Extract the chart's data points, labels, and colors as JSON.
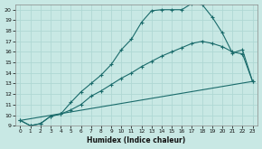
{
  "xlabel": "Humidex (Indice chaleur)",
  "xlim": [
    -0.5,
    23.5
  ],
  "ylim": [
    9,
    20.5
  ],
  "yticks": [
    9,
    10,
    11,
    12,
    13,
    14,
    15,
    16,
    17,
    18,
    19,
    20
  ],
  "xticks": [
    0,
    1,
    2,
    3,
    4,
    5,
    6,
    7,
    8,
    9,
    10,
    11,
    12,
    13,
    14,
    15,
    16,
    17,
    18,
    19,
    20,
    21,
    22,
    23
  ],
  "bg_color": "#c8e8e4",
  "line_color": "#1a6b6b",
  "grid_color": "#afd8d4",
  "lines": [
    {
      "x": [
        0,
        1,
        2,
        3,
        4,
        5,
        6,
        7,
        8,
        9,
        10,
        11,
        12,
        13,
        14,
        15,
        16,
        17,
        18,
        19,
        20,
        21,
        22,
        23
      ],
      "y": [
        9.5,
        9.0,
        9.2,
        9.9,
        10.1,
        11.2,
        12.2,
        13.0,
        13.8,
        14.8,
        16.2,
        17.2,
        18.8,
        19.9,
        20.0,
        20.0,
        20.0,
        20.6,
        20.5,
        19.3,
        17.8,
        15.9,
        16.2,
        13.2
      ],
      "has_markers": true
    },
    {
      "x": [
        0,
        1,
        2,
        3,
        4,
        5,
        6,
        7,
        8,
        9,
        10,
        11,
        12,
        13,
        14,
        15,
        16,
        17,
        18,
        19,
        20,
        21,
        22,
        23
      ],
      "y": [
        9.5,
        9.0,
        9.2,
        9.9,
        10.1,
        10.5,
        11.0,
        11.8,
        12.3,
        12.9,
        13.5,
        14.0,
        14.6,
        15.1,
        15.6,
        16.0,
        16.4,
        16.8,
        17.0,
        16.8,
        16.5,
        16.0,
        15.8,
        13.2
      ],
      "has_markers": true
    },
    {
      "x": [
        0,
        23
      ],
      "y": [
        9.5,
        13.2
      ],
      "has_markers": false
    }
  ]
}
